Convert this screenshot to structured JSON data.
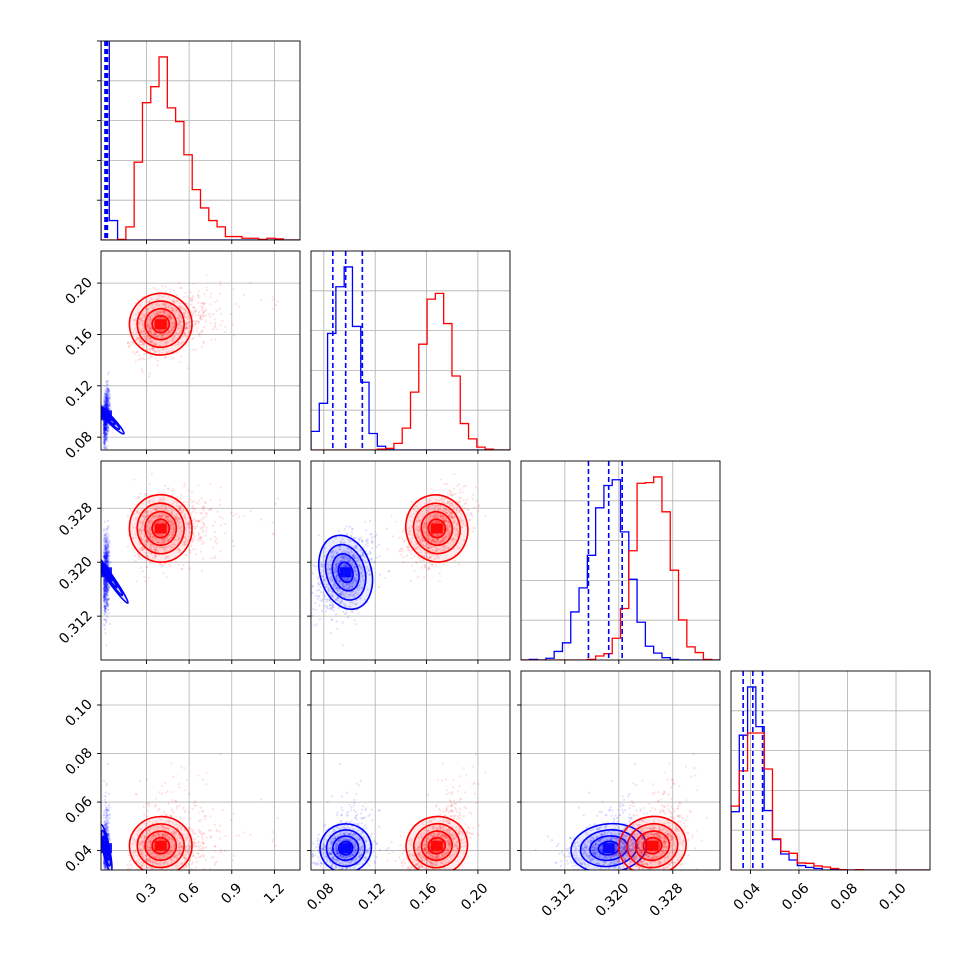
{
  "colors": {
    "series_a": "#0000ff",
    "series_b": "#ff0000",
    "grid": "#b0b0b0"
  },
  "chart_data": {
    "type": "corner",
    "n_params": 4,
    "grid": true,
    "series": [
      {
        "color": "#0000ff",
        "means": [
          0.015,
          0.097,
          0.3185,
          0.041
        ],
        "stds": [
          0.012,
          0.01,
          0.0028,
          0.005
        ],
        "quantile_lines": [
          [
            0.008,
            0.011,
            0.014,
            0.019,
            0.022,
            0.025
          ],
          [
            0.087,
            0.097,
            0.11
          ],
          [
            0.3155,
            0.3185,
            0.3205
          ],
          [
            0.037,
            0.041,
            0.045
          ]
        ]
      },
      {
        "color": "#ff0000",
        "means": [
          0.43,
          0.168,
          0.325,
          0.042
        ],
        "stds": [
          0.14,
          0.012,
          0.0025,
          0.006
        ],
        "quantile_lines": []
      }
    ],
    "axes": [
      {
        "range": [
          -0.02,
          1.38
        ],
        "ticks": [
          0.3,
          0.6,
          0.9,
          1.2
        ],
        "tick_labels": [
          "0.3",
          "0.6",
          "0.9",
          "1.2"
        ]
      },
      {
        "range": [
          0.07,
          0.225
        ],
        "ticks": [
          0.08,
          0.12,
          0.16,
          0.2
        ],
        "tick_labels": [
          "0.08",
          "0.12",
          "0.16",
          "0.20"
        ]
      },
      {
        "range": [
          0.3055,
          0.335
        ],
        "ticks": [
          0.312,
          0.32,
          0.328
        ],
        "tick_labels": [
          "0.312",
          "0.320",
          "0.328"
        ]
      },
      {
        "range": [
          0.032,
          0.114
        ],
        "ticks": [
          0.04,
          0.06,
          0.08,
          0.1
        ],
        "tick_labels": [
          "0.04",
          "0.06",
          "0.08",
          "0.10"
        ]
      }
    ]
  }
}
